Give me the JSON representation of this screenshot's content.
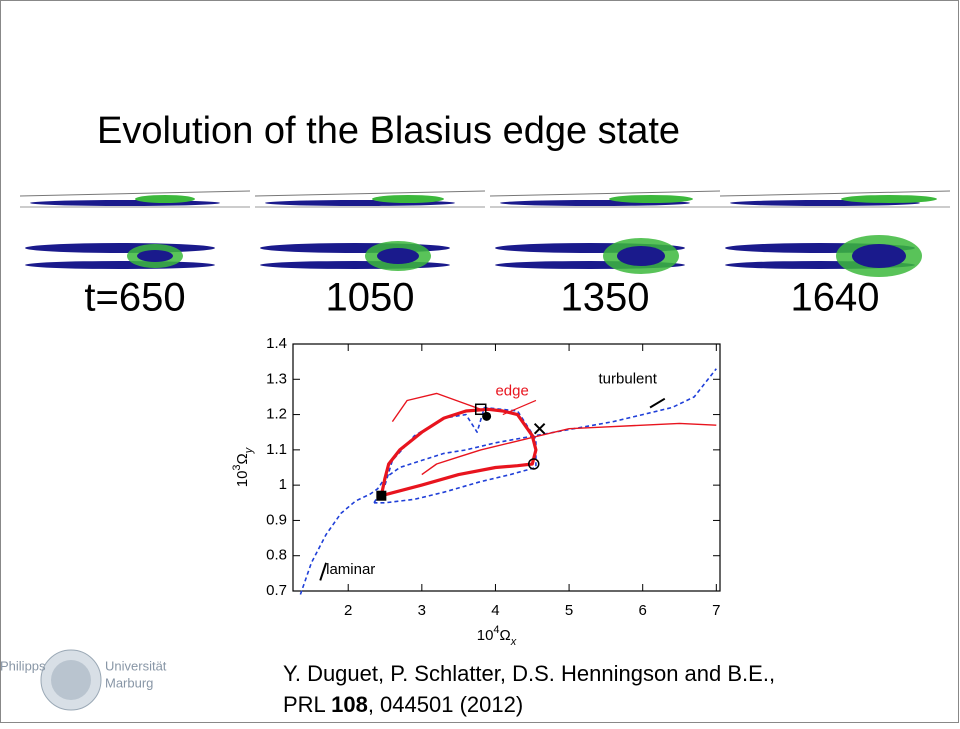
{
  "title": "Evolution of the Blasius edge state",
  "snapshots": [
    {
      "label": "t=650"
    },
    {
      "label": "1050"
    },
    {
      "label": "1350"
    },
    {
      "label": "1640"
    }
  ],
  "chart_data": {
    "type": "line",
    "xlabel": {
      "base": "10",
      "exp": "4",
      "sym": "Ω",
      "sub": "x"
    },
    "ylabel": {
      "base": "10",
      "exp": "3",
      "sym": "Ω",
      "sub": "y"
    },
    "xlim": [
      1.25,
      7.05
    ],
    "ylim": [
      0.7,
      1.4
    ],
    "xticks": [
      2,
      3,
      4,
      5,
      6,
      7
    ],
    "yticks": [
      0.7,
      0.8,
      0.9,
      1,
      1.1,
      1.2,
      1.3,
      1.4
    ],
    "annotations": [
      {
        "text": "edge",
        "x": 4.0,
        "y": 1.265,
        "color": "#e8141e"
      },
      {
        "text": "turbulent",
        "x": 5.4,
        "y": 1.3,
        "color": "#000000"
      },
      {
        "text": "laminar",
        "x": 1.7,
        "y": 0.76,
        "color": "#000000"
      }
    ],
    "series": [
      {
        "color": "#1f3fd8",
        "dash": true,
        "width": 1.6,
        "x": [
          1.35,
          1.5,
          1.7,
          1.9,
          2.1,
          2.3,
          2.4,
          2.5,
          2.7,
          3.0,
          3.3,
          3.6,
          4.0,
          4.4,
          4.8,
          5.2,
          5.6,
          6.0,
          6.4,
          6.7,
          7.0
        ],
        "y": [
          0.69,
          0.78,
          0.86,
          0.92,
          0.955,
          0.975,
          0.99,
          1.02,
          1.05,
          1.07,
          1.09,
          1.1,
          1.12,
          1.135,
          1.15,
          1.165,
          1.18,
          1.2,
          1.22,
          1.25,
          1.33
        ]
      },
      {
        "color": "#1f3fd8",
        "dash": true,
        "width": 1.6,
        "x": [
          2.35,
          2.5,
          2.6,
          2.9,
          3.3,
          3.6,
          3.75,
          3.85,
          4.3,
          4.55,
          4.55,
          4.2,
          3.8,
          3.3,
          2.9,
          2.5,
          2.35
        ],
        "y": [
          0.95,
          1.0,
          1.07,
          1.14,
          1.19,
          1.2,
          1.15,
          1.22,
          1.21,
          1.13,
          1.05,
          1.03,
          1.01,
          0.98,
          0.96,
          0.95,
          0.95
        ]
      },
      {
        "color": "#e8141e",
        "dash": false,
        "width": 3.2,
        "x": [
          2.45,
          2.5,
          2.55,
          2.7,
          3.0,
          3.3,
          3.6,
          3.9,
          4.1,
          4.3,
          4.5,
          4.55,
          4.5,
          4.3,
          4.0,
          3.5,
          3.0,
          2.45
        ],
        "y": [
          0.97,
          1.02,
          1.06,
          1.1,
          1.15,
          1.19,
          1.21,
          1.215,
          1.21,
          1.2,
          1.14,
          1.1,
          1.06,
          1.055,
          1.05,
          1.03,
          1.0,
          0.97
        ]
      },
      {
        "color": "#e8141e",
        "dash": false,
        "width": 1.4,
        "x": [
          3.0,
          3.2,
          3.5,
          3.8,
          4.2,
          4.6,
          5.0,
          5.5,
          6.0,
          6.5,
          7.0
        ],
        "y": [
          1.03,
          1.06,
          1.08,
          1.1,
          1.12,
          1.14,
          1.16,
          1.165,
          1.17,
          1.175,
          1.17
        ]
      },
      {
        "color": "#e8141e",
        "dash": false,
        "width": 1.4,
        "x": [
          2.6,
          2.8,
          3.2,
          3.6,
          3.8
        ],
        "y": [
          1.18,
          1.24,
          1.26,
          1.23,
          1.215
        ]
      }
    ],
    "markers": [
      {
        "shape": "filled-square",
        "x": 2.45,
        "y": 0.97
      },
      {
        "shape": "open-square",
        "x": 3.8,
        "y": 1.215
      },
      {
        "shape": "filled-circle",
        "x": 3.88,
        "y": 1.195
      },
      {
        "shape": "cross",
        "x": 4.6,
        "y": 1.16
      },
      {
        "shape": "open-circle",
        "x": 4.52,
        "y": 1.06
      }
    ]
  },
  "citation": {
    "authors": "Y. Duguet, P. Schlatter, D.S. Henningson and B.E.,",
    "journal": "PRL",
    "volume": "108",
    "rest": ", 044501 (2012)"
  },
  "logo": {
    "left": "Philipps",
    "right": "Universität",
    "right2": "Marburg"
  }
}
